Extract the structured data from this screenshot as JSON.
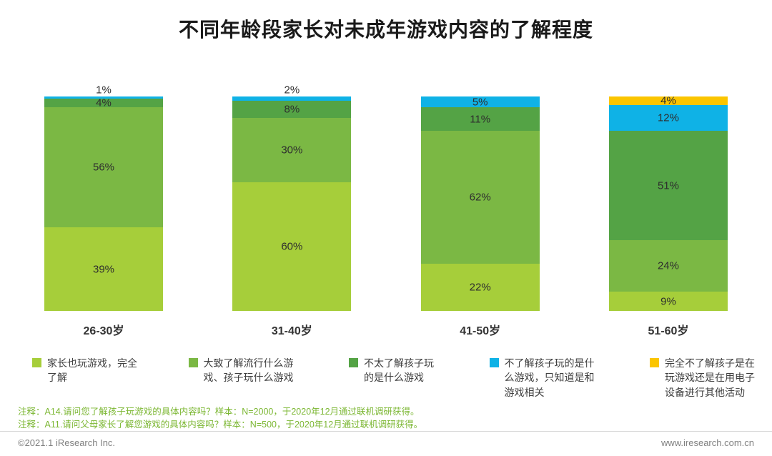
{
  "title": "不同年龄段家长对未成年游戏内容的了解程度",
  "chart_data": {
    "type": "bar",
    "variant": "stacked-column",
    "title": "不同年龄段家长对未成年游戏内容的了解程度",
    "categories": [
      "26-30岁",
      "31-40岁",
      "41-50岁",
      "51-60岁"
    ],
    "series": [
      {
        "name": "家长也玩游戏，完全了解",
        "color": "#a6ce3a",
        "values": [
          39,
          60,
          22,
          9
        ]
      },
      {
        "name": "大致了解流行什么游戏、孩子玩什么游戏",
        "color": "#7bb844",
        "values": [
          56,
          30,
          62,
          24
        ]
      },
      {
        "name": "不太了解孩子玩的是什么游戏",
        "color": "#54a345",
        "values": [
          4,
          8,
          11,
          51
        ]
      },
      {
        "name": "不了解孩子玩的是什么游戏，只知道是和游戏相关",
        "color": "#0fb2e6",
        "values": [
          1,
          2,
          5,
          12
        ]
      },
      {
        "name": "完全不了解孩子是在玩游戏还是在用电子设备进行其他活动",
        "color": "#fbc500",
        "values": [
          0,
          0,
          0,
          4
        ]
      }
    ],
    "value_suffix": "%",
    "ylim": [
      0,
      100
    ],
    "totals": [
      100,
      100,
      100,
      100
    ],
    "grid": false,
    "legend_position": "bottom"
  },
  "notes": [
    "注释：A14.请问您了解孩子玩游戏的具体内容吗？样本：N=2000，于2020年12月通过联机调研获得。",
    "注释：A11.请问父母家长了解您游戏的具体内容吗？样本：N=500，于2020年12月通过联机调研获得。"
  ],
  "footer": {
    "copyright": "©2021.1 iResearch Inc.",
    "website": "www.iresearch.com.cn"
  }
}
